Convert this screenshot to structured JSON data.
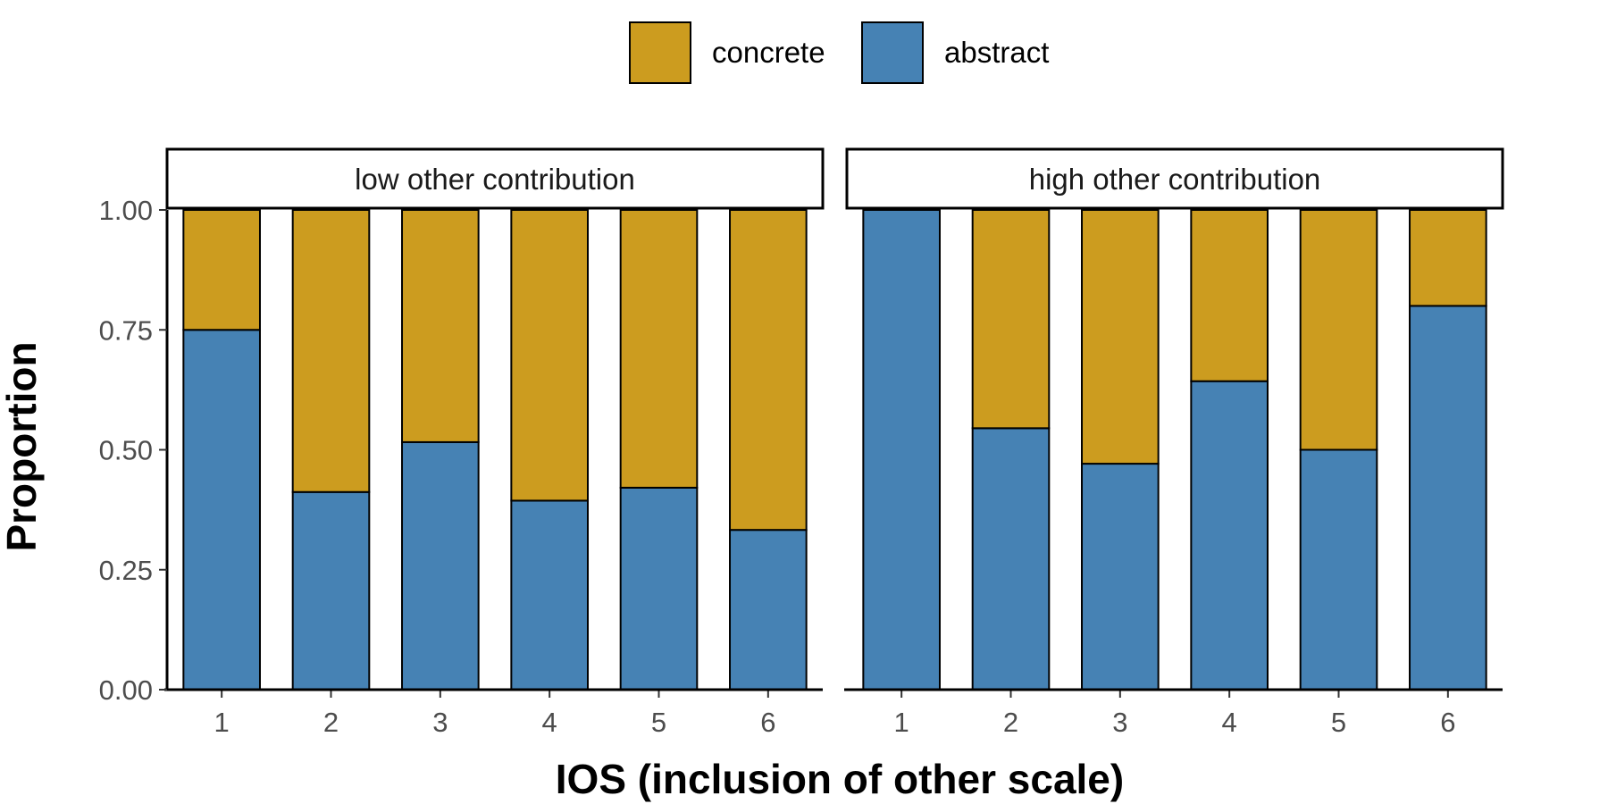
{
  "chart_data": {
    "type": "bar",
    "stacked": true,
    "xlabel": "IOS (inclusion of other scale)",
    "ylabel": "Proportion",
    "ylim": [
      0,
      1
    ],
    "y_ticks": [
      "0.00",
      "0.25",
      "0.50",
      "0.75",
      "1.00"
    ],
    "categories": [
      "1",
      "2",
      "3",
      "4",
      "5",
      "6"
    ],
    "legend": {
      "placement": "top",
      "entries": [
        {
          "name": "concrete",
          "color": "#CC9C1F"
        },
        {
          "name": "abstract",
          "color": "#4682B4"
        }
      ]
    },
    "grid": false,
    "panels": [
      {
        "title": "low other contribution",
        "series": [
          {
            "name": "abstract",
            "values": [
              0.75,
              0.412,
              0.516,
              0.394,
              0.421,
              0.333
            ]
          },
          {
            "name": "concrete",
            "values": [
              0.25,
              0.588,
              0.484,
              0.606,
              0.579,
              0.667
            ]
          }
        ]
      },
      {
        "title": "high other contribution",
        "series": [
          {
            "name": "abstract",
            "values": [
              1.0,
              0.545,
              0.471,
              0.643,
              0.5,
              0.8
            ]
          },
          {
            "name": "concrete",
            "values": [
              0.0,
              0.455,
              0.529,
              0.357,
              0.5,
              0.2
            ]
          }
        ]
      }
    ]
  }
}
